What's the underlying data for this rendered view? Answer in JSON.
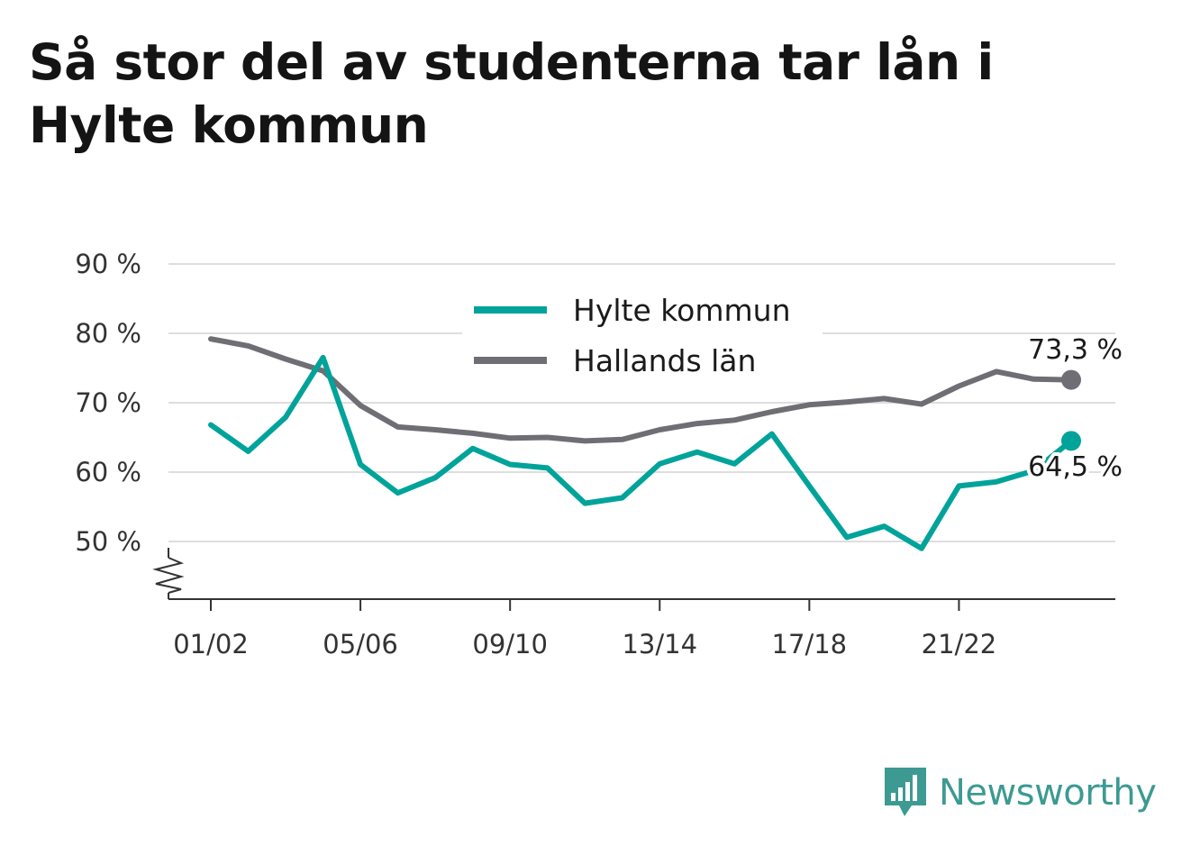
{
  "title": "Så stor del av studenterna tar lån i Hylte kommun",
  "brand": {
    "name": "Newsworthy",
    "icon": "newsworthy-logo-icon"
  },
  "colors": {
    "hylte": "#00a39a",
    "halland": "#6f6e74",
    "grid": "#dedede",
    "axis": "#333333",
    "brand": "#3c9a92"
  },
  "chart_data": {
    "type": "line",
    "x": [
      "01/02",
      "02/03",
      "03/04",
      "04/05",
      "05/06",
      "06/07",
      "07/08",
      "08/09",
      "09/10",
      "10/11",
      "11/12",
      "12/13",
      "13/14",
      "14/15",
      "15/16",
      "16/17",
      "17/18",
      "18/19",
      "19/20",
      "20/21",
      "21/22",
      "22/23",
      "23/24",
      "24/25"
    ],
    "x_tick_labels": [
      "01/02",
      "05/06",
      "09/10",
      "13/14",
      "17/18",
      "21/22"
    ],
    "y_ticks": [
      50,
      60,
      70,
      80,
      90
    ],
    "y_tick_labels": [
      "50 %",
      "60 %",
      "70 %",
      "80 %",
      "90 %"
    ],
    "ylim": [
      43,
      90
    ],
    "y_axis_break": true,
    "legend_position": "top-center",
    "series": [
      {
        "name": "Hylte kommun",
        "color": "#00a39a",
        "values": [
          66.8,
          63.0,
          67.9,
          76.5,
          61.1,
          57.0,
          59.2,
          63.4,
          61.1,
          60.6,
          55.5,
          56.3,
          61.2,
          62.9,
          61.2,
          65.5,
          58.0,
          50.6,
          52.2,
          49.0,
          58.0,
          58.6,
          60.2,
          64.5
        ],
        "end_label": "64,5 %"
      },
      {
        "name": "Hallands län",
        "color": "#6f6e74",
        "values": [
          79.2,
          78.2,
          76.3,
          74.6,
          69.6,
          66.5,
          66.1,
          65.6,
          64.9,
          65.0,
          64.5,
          64.7,
          66.1,
          67.0,
          67.5,
          68.7,
          69.7,
          70.1,
          70.6,
          69.8,
          72.4,
          74.5,
          73.4,
          73.3
        ],
        "end_label": "73,3 %"
      }
    ]
  }
}
